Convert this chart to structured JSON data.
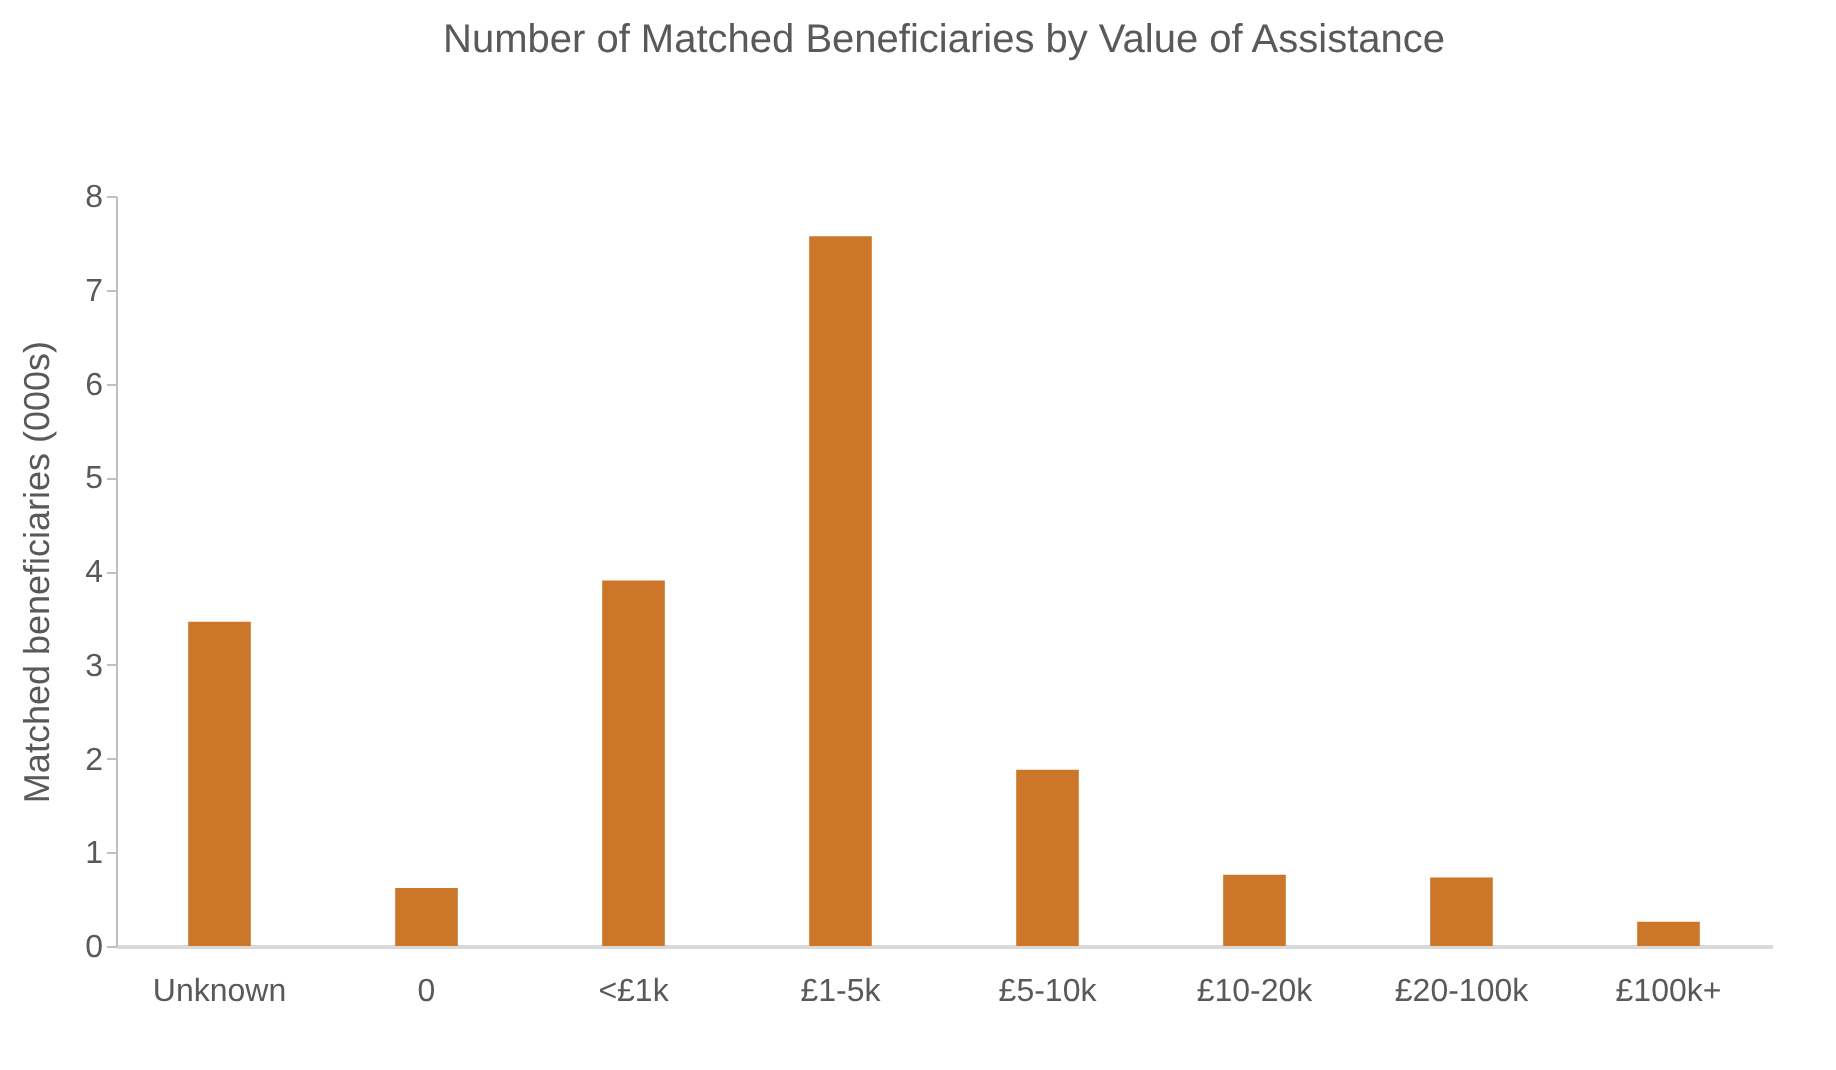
{
  "chart_data": {
    "type": "bar",
    "title": "Number of Matched Beneficiaries by Value of Assistance",
    "ylabel": "Matched beneficiaries (000s)",
    "categories": [
      "Unknown",
      "0",
      "<£1k",
      "£1-5k",
      "£5-10k",
      "£10-20k",
      "£20-100k",
      "£100k+"
    ],
    "values": [
      3.46,
      0.62,
      3.9,
      7.57,
      1.88,
      0.76,
      0.73,
      0.26
    ],
    "color": "#cc7629",
    "ylim": [
      0,
      8
    ],
    "yticks": [
      0,
      1,
      2,
      3,
      4,
      5,
      6,
      7,
      8
    ],
    "grid": false
  }
}
